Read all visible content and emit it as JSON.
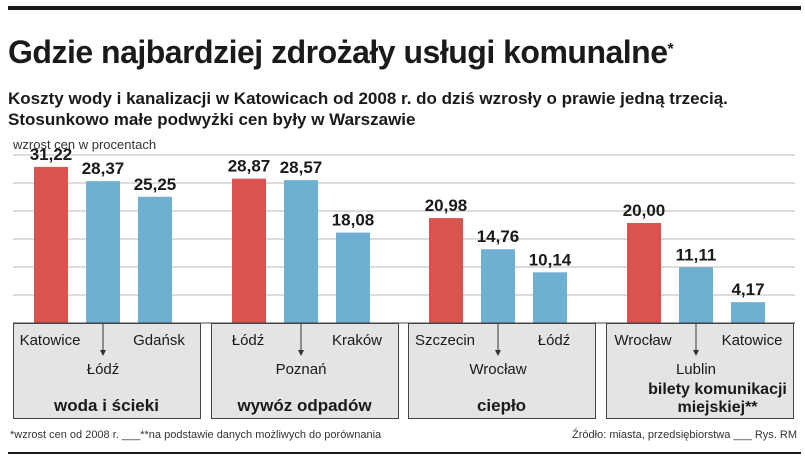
{
  "title": "Gdzie najbardziej zdrożały usługi komunalne",
  "title_mark": "*",
  "subtitle_line1": "Koszty wody i kanalizacji w Katowicach od 2008 r. do dziś wzrosły o prawie jedną trzecią.",
  "subtitle_line2": "Stosunkowo małe podwyżki cen były w Warszawie",
  "footnote": "*wzrost cen od 2008 r. ___**na podstawie danych możliwych do porównania",
  "source": "Źródło: miasta, przedsiębiorstwa ___ Rys. RM",
  "chart_data": {
    "type": "bar",
    "ylabel": "wzrost cen w procentach",
    "ylim": [
      0,
      34
    ],
    "grid": true,
    "colors": {
      "first": "#d9534f",
      "other": "#6fb0d2"
    },
    "groups": [
      {
        "name": "woda i ścieki",
        "bars": [
          {
            "city": "Katowice",
            "value": 31.22,
            "label": "31,22"
          },
          {
            "city": "Łódź",
            "value": 28.37,
            "label": "28,37"
          },
          {
            "city": "Gdańsk",
            "value": 25.25,
            "label": "25,25"
          }
        ]
      },
      {
        "name": "wywóz odpadów",
        "bars": [
          {
            "city": "Łódź",
            "value": 28.87,
            "label": "28,87"
          },
          {
            "city": "Poznań",
            "value": 28.57,
            "label": "28,57"
          },
          {
            "city": "Kraków",
            "value": 18.08,
            "label": "18,08"
          }
        ]
      },
      {
        "name": "ciepło",
        "bars": [
          {
            "city": "Szczecin",
            "value": 20.98,
            "label": "20,98"
          },
          {
            "city": "Wrocław",
            "value": 14.76,
            "label": "14,76"
          },
          {
            "city": "Łódź",
            "value": 10.14,
            "label": "10,14"
          }
        ]
      },
      {
        "name": "bilety komunikacji miejskiej**",
        "bars": [
          {
            "city": "Wrocław",
            "value": 20.0,
            "label": "20,00"
          },
          {
            "city": "Lublin",
            "value": 11.11,
            "label": "11,11"
          },
          {
            "city": "Katowice",
            "value": 4.17,
            "label": "4,17"
          }
        ]
      }
    ]
  }
}
